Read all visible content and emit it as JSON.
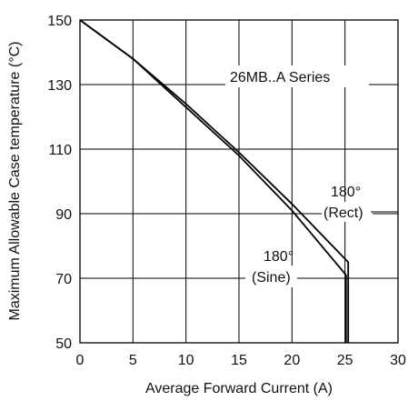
{
  "chart_data": {
    "type": "line",
    "title": "",
    "xlabel": "Average Forward Current (A)",
    "ylabel": "Maximum Allowable Case temperature (°C)",
    "xlim": [
      0,
      30
    ],
    "ylim": [
      50,
      150
    ],
    "x_ticks": [
      "0",
      "5",
      "10",
      "15",
      "20",
      "25",
      "30"
    ],
    "y_ticks": [
      "50",
      "70",
      "90",
      "110",
      "130",
      "150"
    ],
    "grid": true,
    "series": [
      {
        "name": "180° (Rect)",
        "x": [
          0,
          5,
          10,
          15,
          20,
          25.3,
          25.3
        ],
        "y": [
          150,
          138,
          124,
          109,
          93,
          75,
          50
        ]
      },
      {
        "name": "180° (Sine)",
        "x": [
          0,
          5,
          10,
          15,
          20,
          25.1,
          25.1
        ],
        "y": [
          150,
          138,
          123,
          108,
          91,
          71,
          50
        ]
      }
    ],
    "annotations": [
      {
        "text": "26MB..A Series"
      },
      {
        "text": "180°"
      },
      {
        "text": "(Rect)"
      },
      {
        "text": "180°"
      },
      {
        "text": "(Sine)"
      }
    ]
  }
}
